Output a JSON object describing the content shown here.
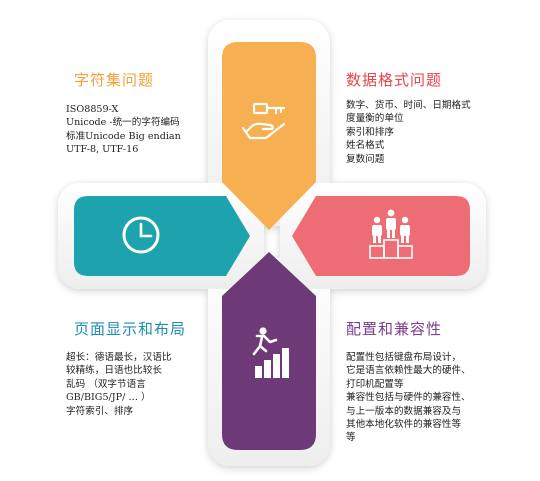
{
  "colors": {
    "orange": "#F7B051",
    "red": "#EE6D74",
    "teal": "#1CA3AE",
    "purple": "#6D3A77",
    "orange_text": "#F2A03A",
    "red_text": "#E9434D",
    "teal_text": "#1D8FB0",
    "purple_text": "#7A3E8C"
  },
  "quadrants": {
    "top_left": {
      "title": "字符集问题",
      "lines": [
        "ISO8859-X",
        "Unicode -统一的字符编码",
        "标准Unicode  Big endian",
        "UTF-8, UTF-16"
      ],
      "icon": "key-in-hand-icon"
    },
    "top_right": {
      "title": "数据格式问题",
      "lines": [
        "数字、货币、时间、日期格式",
        "度量衡的单位",
        "索引和排序",
        "姓名格式",
        "复数问题"
      ],
      "icon": "people-podium-icon"
    },
    "bottom_left": {
      "title": "页面显示和布局",
      "lines": [
        "超长：德语最长，汉语比",
        "较精练，日语也比较长",
        "乱码 （双字节语言",
        "GB/BIG5/JP/ … ）",
        "字符索引、排序"
      ],
      "icon": "clock-icon"
    },
    "bottom_right": {
      "title": "配置和兼容性",
      "lines": [
        "配置性包括键盘布局设计，",
        "它是语言依赖性最大的硬件、",
        "打印机配置等",
        "兼容性包括与硬件的兼容性、",
        "与上一版本的数据兼容及与",
        "其他本地化软件的兼容性等",
        "等"
      ],
      "icon": "climbing-stairs-icon"
    }
  }
}
